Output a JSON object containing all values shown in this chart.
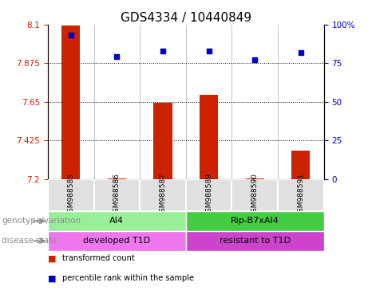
{
  "title": "GDS4334 / 10440849",
  "samples": [
    "GSM988585",
    "GSM988586",
    "GSM988587",
    "GSM988589",
    "GSM988590",
    "GSM988591"
  ],
  "bar_values": [
    8.095,
    7.205,
    7.645,
    7.69,
    7.205,
    7.365
  ],
  "percentile_values": [
    93,
    79,
    83,
    83,
    77,
    82
  ],
  "ylim_left": [
    7.2,
    8.1
  ],
  "ylim_right": [
    0,
    100
  ],
  "yticks_left": [
    7.2,
    7.425,
    7.65,
    7.875,
    8.1
  ],
  "yticks_right": [
    0,
    25,
    50,
    75,
    100
  ],
  "ytick_labels_left": [
    "7.2",
    "7.425",
    "7.65",
    "7.875",
    "8.1"
  ],
  "ytick_labels_right": [
    "0",
    "25",
    "50",
    "75",
    "100%"
  ],
  "hlines": [
    7.875,
    7.65,
    7.425
  ],
  "bar_color": "#cc2200",
  "percentile_color": "#0000cc",
  "bar_width": 0.4,
  "genotype_groups": [
    {
      "label": "AI4",
      "start": 0,
      "end": 3,
      "color": "#99ee99"
    },
    {
      "label": "Rip-B7xAI4",
      "start": 3,
      "end": 6,
      "color": "#44cc44"
    }
  ],
  "disease_groups": [
    {
      "label": "developed T1D",
      "start": 0,
      "end": 3,
      "color": "#ee77ee"
    },
    {
      "label": "resistant to T1D",
      "start": 3,
      "end": 6,
      "color": "#cc44cc"
    }
  ],
  "row_labels": [
    "genotype/variation",
    "disease state"
  ],
  "legend_red_label": "transformed count",
  "legend_blue_label": "percentile rank within the sample",
  "background_color": "#ffffff",
  "title_fontsize": 11,
  "tick_fontsize": 7.5,
  "sample_fontsize": 6.5,
  "annotation_fontsize": 8,
  "row_label_fontsize": 7.5,
  "legend_fontsize": 7
}
